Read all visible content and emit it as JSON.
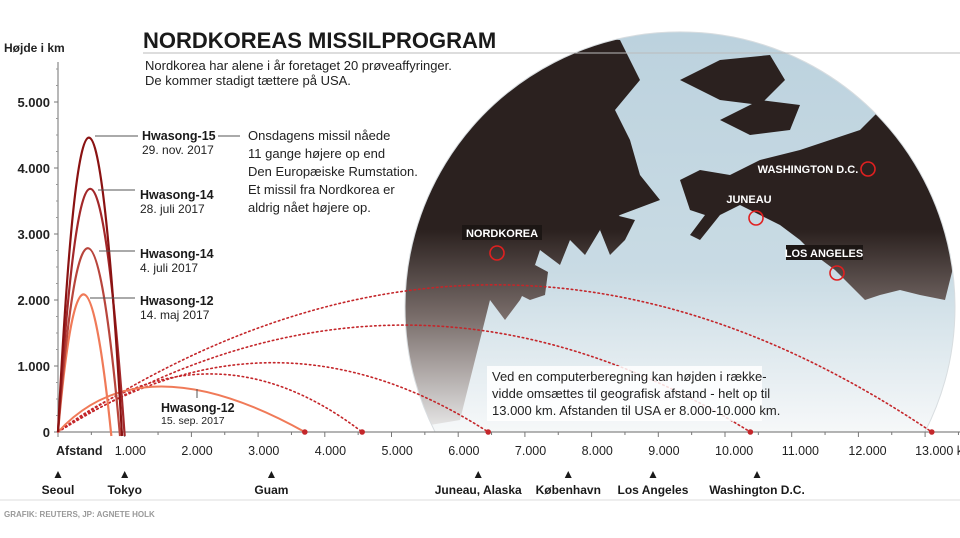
{
  "title": "NORDKOREAS MISSILPROGRAM",
  "subtitle": [
    "Nordkorea har alene i år foretaget 20 prøveaffyringer.",
    "De kommer stadigt tættere på USA."
  ],
  "annotation": [
    "Onsdagens missil nåede",
    "11 gange højere op end",
    "Den Europæiske Rumstation.",
    "Et missil fra Nordkorea er",
    "aldrig nået højere op."
  ],
  "note": [
    "Ved en computerberegning kan højden i række-",
    "vidde omsættes til geografisk afstand - helt op til",
    "13.000 km. Afstanden til USA er 8.000-10.000 km."
  ],
  "credit": "GRAFIK: REUTERS, JP: AGNETE HOLK",
  "globe_labels": [
    "NORDKOREA",
    "JUNEAU",
    "WASHINGTON D.C.",
    "LOS ANGELES"
  ],
  "colors": {
    "h15": "#8a1212",
    "h14a": "#a3282a",
    "h14b": "#b8453c",
    "h12": "#f07a58",
    "dotted": "#c4262a",
    "ocean": "#bcd2de",
    "land": "#2b211f"
  },
  "chart_data": {
    "type": "line",
    "ylabel": "Højde i km",
    "xlabel": "Afstand",
    "xunit": "km",
    "ylim": [
      0,
      5000
    ],
    "xlim": [
      0,
      13000
    ],
    "yticks": [
      {
        "v": 0,
        "label": "0"
      },
      {
        "v": 1000,
        "label": "1.000"
      },
      {
        "v": 2000,
        "label": "2.000"
      },
      {
        "v": 3000,
        "label": "3.000"
      },
      {
        "v": 4000,
        "label": "4.000"
      },
      {
        "v": 5000,
        "label": "5.000"
      }
    ],
    "xticks": [
      {
        "v": 1000,
        "label": "1.000"
      },
      {
        "v": 2000,
        "label": "2.000"
      },
      {
        "v": 3000,
        "label": "3.000"
      },
      {
        "v": 4000,
        "label": "4.000"
      },
      {
        "v": 5000,
        "label": "5.000"
      },
      {
        "v": 6000,
        "label": "6.000"
      },
      {
        "v": 7000,
        "label": "7.000"
      },
      {
        "v": 8000,
        "label": "8.000"
      },
      {
        "v": 9000,
        "label": "9.000"
      },
      {
        "v": 10000,
        "label": "10.000"
      },
      {
        "v": 11000,
        "label": "11.000"
      },
      {
        "v": 12000,
        "label": "12.000"
      },
      {
        "v": 13000,
        "label": "13.000 km"
      }
    ],
    "lofted": [
      {
        "name": "Hwasong-15",
        "date": "29. nov. 2017",
        "apex": 4475,
        "range": 960,
        "color": "#8a1212"
      },
      {
        "name": "Hwasong-14",
        "date": "28. juli 2017",
        "apex": 3700,
        "range": 1000,
        "color": "#a3282a"
      },
      {
        "name": "Hwasong-14",
        "date": "4. juli 2017",
        "apex": 2800,
        "range": 930,
        "color": "#b8453c"
      },
      {
        "name": "Hwasong-12",
        "date": "14. maj 2017",
        "apex": 2100,
        "range": 800,
        "color": "#f07a58"
      }
    ],
    "standard": {
      "name": "Hwasong-12",
      "date": "15. sep. 2017",
      "apex": 690,
      "range": 3700,
      "color": "#f07a58"
    },
    "projected": [
      {
        "range": 4560,
        "apex": 880
      },
      {
        "range": 6450,
        "apex": 1050
      },
      {
        "range": 10380,
        "apex": 1620
      },
      {
        "range": 13100,
        "apex": 2230
      }
    ],
    "cities": [
      {
        "name": "Seoul",
        "km": 0
      },
      {
        "name": "Tokyo",
        "km": 1000
      },
      {
        "name": "Guam",
        "km": 3200
      },
      {
        "name": "Juneau, Alaska",
        "km": 6300
      },
      {
        "name": "København",
        "km": 7650
      },
      {
        "name": "Los Angeles",
        "km": 8920
      },
      {
        "name": "Washington D.C.",
        "km": 10480
      }
    ]
  }
}
